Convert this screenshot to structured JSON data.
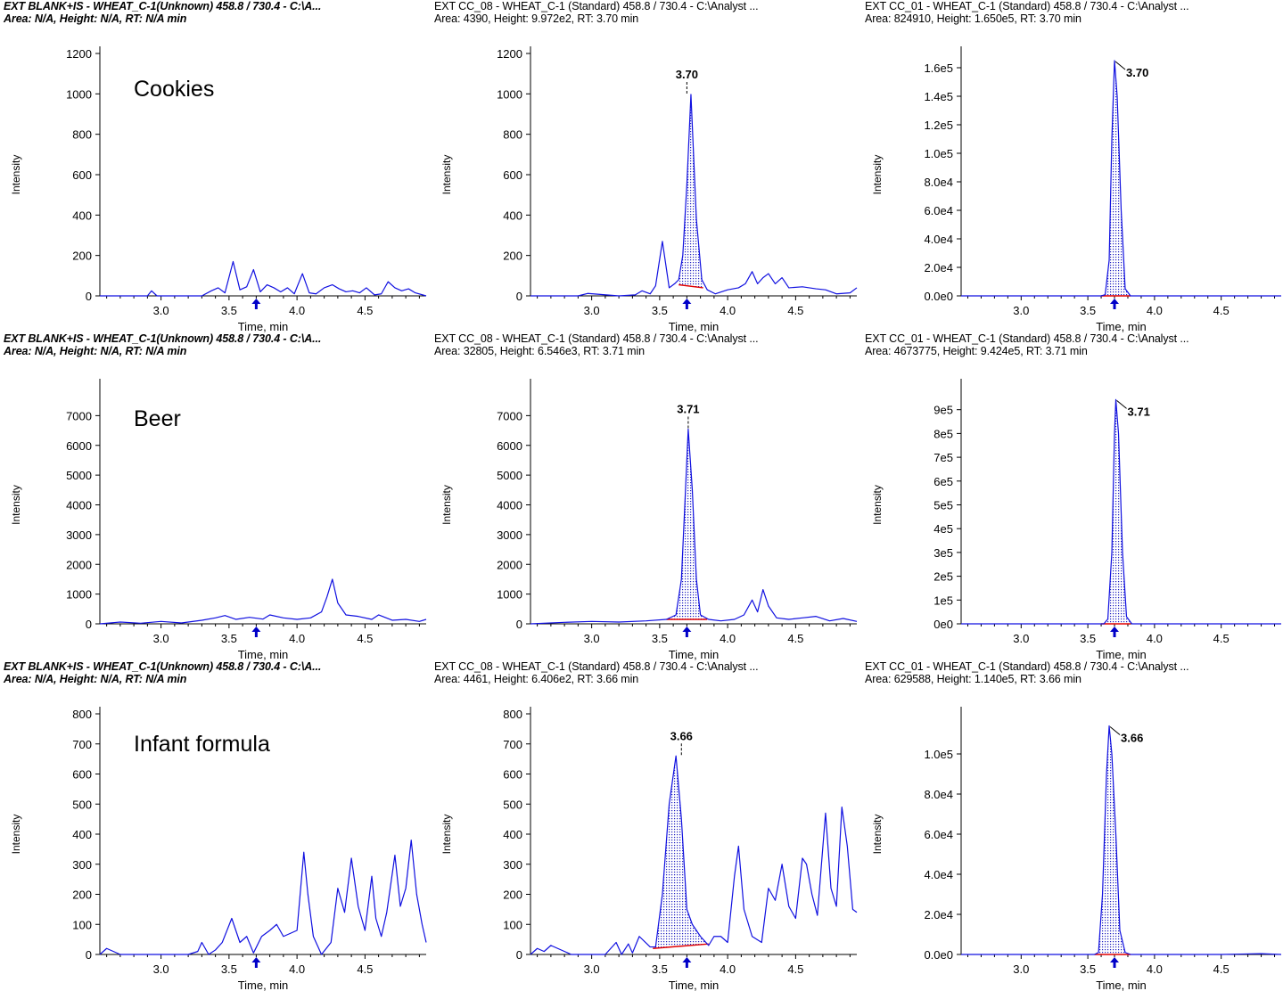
{
  "rows": [
    {
      "sample_label": "Cookies",
      "panels": [
        {
          "title": "EXT BLANK+IS - WHEAT_C-1(Unknown) 458.8 / 730.4 - C:\\A...",
          "info": "Area: N/A, Height: N/A, RT: N/A min",
          "style": "bold-italic"
        },
        {
          "title": "EXT CC_08 - WHEAT_C-1 (Standard) 458.8 / 730.4 - C:\\Analyst ...",
          "info": "Area: 4390, Height: 9.972e2, RT: 3.70 min",
          "style": "normal"
        },
        {
          "title": "EXT CC_01 - WHEAT_C-1 (Standard) 458.8 / 730.4 - C:\\Analyst ...",
          "info": "Area: 824910, Height: 1.650e5, RT: 3.70 min",
          "style": "normal"
        }
      ]
    },
    {
      "sample_label": "Beer",
      "panels": [
        {
          "title": "EXT BLANK+IS - WHEAT_C-1(Unknown) 458.8 / 730.4 - C:\\A...",
          "info": "Area: N/A, Height: N/A, RT: N/A min",
          "style": "bold-italic"
        },
        {
          "title": "EXT CC_08 - WHEAT_C-1 (Standard) 458.8 / 730.4 - C:\\Analyst ...",
          "info": "Area: 32805, Height: 6.546e3, RT: 3.71 min",
          "style": "normal"
        },
        {
          "title": "EXT CC_01 - WHEAT_C-1 (Standard) 458.8 / 730.4 - C:\\Analyst ...",
          "info": "Area: 4673775, Height: 9.424e5, RT: 3.71 min",
          "style": "normal"
        }
      ]
    },
    {
      "sample_label": "Infant formula",
      "panels": [
        {
          "title": "EXT BLANK+IS - WHEAT_C-1(Unknown) 458.8 / 730.4 - C:\\A...",
          "info": "Area: N/A, Height: N/A, RT: N/A min",
          "style": "bold-italic"
        },
        {
          "title": "EXT CC_08 - WHEAT_C-1 (Standard) 458.8 / 730.4 - C:\\Analyst ...",
          "info": "Area: 4461, Height: 6.406e2, RT: 3.66 min",
          "style": "normal"
        },
        {
          "title": "EXT CC_01 - WHEAT_C-1 (Standard) 458.8 / 730.4 - C:\\Analyst ...",
          "info": "Area: 629588, Height: 1.140e5, RT: 3.66 min",
          "style": "normal"
        }
      ]
    }
  ],
  "chart_data": [
    {
      "type": "line",
      "row": 0,
      "col": 0,
      "xlabel": "Time, min",
      "ylabel": "Intensity",
      "xlim": [
        2.55,
        4.95
      ],
      "ylim": [
        0,
        1200
      ],
      "xticks": [
        3.0,
        3.5,
        4.0,
        4.5
      ],
      "xtick_labels": [
        "3.0",
        "3.5",
        "4.0",
        "4.5"
      ],
      "yticks": [
        0,
        200,
        400,
        600,
        800,
        1000,
        1200
      ],
      "ytick_labels": [
        "0",
        "200",
        "400",
        "600",
        "800",
        "1000",
        "1200"
      ],
      "x": [
        2.55,
        2.9,
        2.93,
        2.97,
        3.3,
        3.37,
        3.42,
        3.47,
        3.53,
        3.58,
        3.63,
        3.68,
        3.73,
        3.78,
        3.83,
        3.88,
        3.93,
        3.98,
        4.04,
        4.09,
        4.14,
        4.2,
        4.26,
        4.31,
        4.36,
        4.41,
        4.46,
        4.51,
        4.57,
        4.62,
        4.67,
        4.72,
        4.77,
        4.82,
        4.87,
        4.95
      ],
      "y": [
        0,
        0,
        25,
        0,
        0,
        25,
        40,
        15,
        170,
        30,
        45,
        130,
        20,
        55,
        40,
        20,
        40,
        10,
        110,
        15,
        10,
        40,
        55,
        35,
        20,
        25,
        15,
        40,
        5,
        10,
        70,
        40,
        25,
        35,
        15,
        0
      ],
      "rt_marker": 3.7
    },
    {
      "type": "line",
      "row": 0,
      "col": 1,
      "xlabel": "Time, min",
      "ylabel": "Intensity",
      "xlim": [
        2.55,
        4.95
      ],
      "ylim": [
        0,
        1200
      ],
      "xticks": [
        3.0,
        3.5,
        4.0,
        4.5
      ],
      "xtick_labels": [
        "3.0",
        "3.5",
        "4.0",
        "4.5"
      ],
      "yticks": [
        0,
        200,
        400,
        600,
        800,
        1000,
        1200
      ],
      "ytick_labels": [
        "0",
        "200",
        "400",
        "600",
        "800",
        "1000",
        "1200"
      ],
      "x": [
        2.55,
        2.9,
        2.97,
        3.2,
        3.32,
        3.37,
        3.43,
        3.47,
        3.52,
        3.57,
        3.61,
        3.64,
        3.67,
        3.7,
        3.73,
        3.77,
        3.81,
        3.85,
        3.91,
        4.0,
        4.08,
        4.13,
        4.18,
        4.22,
        4.26,
        4.3,
        4.35,
        4.4,
        4.45,
        4.55,
        4.65,
        4.72,
        4.8,
        4.9,
        4.95
      ],
      "y": [
        0,
        0,
        12,
        0,
        5,
        25,
        10,
        50,
        270,
        40,
        60,
        80,
        200,
        550,
        997,
        380,
        80,
        30,
        10,
        30,
        40,
        60,
        120,
        60,
        90,
        110,
        60,
        90,
        40,
        45,
        35,
        30,
        10,
        15,
        40
      ],
      "peak_range": [
        3.64,
        3.82
      ],
      "baseline": [
        55,
        40
      ],
      "peak_label": "3.70",
      "peak_x": 3.7,
      "rt_marker": 3.7
    },
    {
      "type": "line",
      "row": 0,
      "col": 2,
      "xlabel": "Time, min",
      "ylabel": "Intensity",
      "xlim": [
        2.55,
        4.95
      ],
      "ylim": [
        0,
        170000
      ],
      "xticks": [
        3.0,
        3.5,
        4.0,
        4.5
      ],
      "xtick_labels": [
        "3.0",
        "3.5",
        "4.0",
        "4.5"
      ],
      "yticks": [
        0,
        20000,
        40000,
        60000,
        80000,
        100000,
        120000,
        140000,
        160000
      ],
      "ytick_labels": [
        "0.0e0",
        "2.0e4",
        "4.0e4",
        "6.0e4",
        "8.0e4",
        "1.0e5",
        "1.2e5",
        "1.4e5",
        "1.6e5"
      ],
      "x": [
        2.55,
        3.6,
        3.63,
        3.66,
        3.68,
        3.7,
        3.72,
        3.75,
        3.78,
        3.82,
        4.5,
        4.95
      ],
      "y": [
        0,
        0,
        800,
        25000,
        110000,
        165000,
        140000,
        60000,
        5000,
        0,
        0,
        0
      ],
      "peak_range": [
        3.6,
        3.82
      ],
      "baseline": [
        0,
        0
      ],
      "peak_label": "3.70",
      "peak_x": 3.7,
      "rt_marker": 3.7
    },
    {
      "type": "line",
      "row": 1,
      "col": 0,
      "xlabel": "Time, min",
      "ylabel": "Intensity",
      "xlim": [
        2.55,
        4.95
      ],
      "ylim": [
        0,
        8000
      ],
      "xticks": [
        3.0,
        3.5,
        4.0,
        4.5
      ],
      "xtick_labels": [
        "3.0",
        "3.5",
        "4.0",
        "4.5"
      ],
      "yticks": [
        0,
        1000,
        2000,
        3000,
        4000,
        5000,
        6000,
        7000
      ],
      "ytick_labels": [
        "0",
        "1000",
        "2000",
        "3000",
        "4000",
        "5000",
        "6000",
        "7000"
      ],
      "x": [
        2.55,
        2.7,
        2.85,
        3.0,
        3.15,
        3.3,
        3.4,
        3.47,
        3.55,
        3.65,
        3.75,
        3.8,
        3.9,
        4.0,
        4.1,
        4.18,
        4.22,
        4.26,
        4.3,
        4.36,
        4.45,
        4.55,
        4.6,
        4.7,
        4.8,
        4.9,
        4.95
      ],
      "y": [
        0,
        60,
        20,
        80,
        30,
        120,
        200,
        280,
        150,
        220,
        160,
        300,
        200,
        150,
        200,
        400,
        900,
        1500,
        700,
        300,
        250,
        150,
        300,
        120,
        150,
        80,
        150
      ],
      "rt_marker": 3.7
    },
    {
      "type": "line",
      "row": 1,
      "col": 1,
      "xlabel": "Time, min",
      "ylabel": "Intensity",
      "xlim": [
        2.55,
        4.95
      ],
      "ylim": [
        0,
        8000
      ],
      "xticks": [
        3.0,
        3.5,
        4.0,
        4.5
      ],
      "xtick_labels": [
        "3.0",
        "3.5",
        "4.0",
        "4.5"
      ],
      "yticks": [
        0,
        1000,
        2000,
        3000,
        4000,
        5000,
        6000,
        7000
      ],
      "ytick_labels": [
        "0",
        "1000",
        "2000",
        "3000",
        "4000",
        "5000",
        "6000",
        "7000"
      ],
      "x": [
        2.55,
        2.8,
        3.0,
        3.2,
        3.4,
        3.55,
        3.62,
        3.66,
        3.69,
        3.71,
        3.74,
        3.77,
        3.8,
        3.86,
        3.95,
        4.05,
        4.12,
        4.18,
        4.22,
        4.26,
        4.3,
        4.36,
        4.45,
        4.55,
        4.65,
        4.75,
        4.85,
        4.95
      ],
      "y": [
        0,
        50,
        80,
        60,
        100,
        150,
        300,
        1500,
        4500,
        6546,
        4500,
        1500,
        300,
        150,
        100,
        150,
        300,
        800,
        400,
        1150,
        600,
        200,
        150,
        200,
        250,
        100,
        180,
        80
      ],
      "peak_range": [
        3.55,
        3.85
      ],
      "baseline": [
        150,
        150
      ],
      "peak_label": "3.71",
      "peak_x": 3.71,
      "rt_marker": 3.7
    },
    {
      "type": "line",
      "row": 1,
      "col": 2,
      "xlabel": "Time, min",
      "ylabel": "Intensity",
      "xlim": [
        2.55,
        4.95
      ],
      "ylim": [
        0,
        1000000
      ],
      "xticks": [
        3.0,
        3.5,
        4.0,
        4.5
      ],
      "xtick_labels": [
        "3.0",
        "3.5",
        "4.0",
        "4.5"
      ],
      "yticks": [
        0,
        100000,
        200000,
        300000,
        400000,
        500000,
        600000,
        700000,
        800000,
        900000
      ],
      "ytick_labels": [
        "0e0",
        "1e5",
        "2e5",
        "3e5",
        "4e5",
        "5e5",
        "6e5",
        "7e5",
        "8e5",
        "9e5"
      ],
      "x": [
        2.55,
        3.62,
        3.65,
        3.68,
        3.7,
        3.71,
        3.73,
        3.76,
        3.79,
        3.83,
        4.5,
        4.95
      ],
      "y": [
        0,
        0,
        20000,
        300000,
        800000,
        942400,
        800000,
        300000,
        30000,
        0,
        0,
        0
      ],
      "peak_range": [
        3.6,
        3.82
      ],
      "baseline": [
        0,
        0
      ],
      "peak_label": "3.71",
      "peak_x": 3.71,
      "rt_marker": 3.7
    },
    {
      "type": "line",
      "row": 2,
      "col": 0,
      "xlabel": "Time, min",
      "ylabel": "Intensity",
      "xlim": [
        2.55,
        4.95
      ],
      "ylim": [
        0,
        800
      ],
      "xticks": [
        3.0,
        3.5,
        4.0,
        4.5
      ],
      "xtick_labels": [
        "3.0",
        "3.5",
        "4.0",
        "4.5"
      ],
      "yticks": [
        0,
        100,
        200,
        300,
        400,
        500,
        600,
        700,
        800
      ],
      "ytick_labels": [
        "0",
        "100",
        "200",
        "300",
        "400",
        "500",
        "600",
        "700",
        "800"
      ],
      "x": [
        2.55,
        2.6,
        2.65,
        2.7,
        3.2,
        3.27,
        3.3,
        3.35,
        3.4,
        3.45,
        3.52,
        3.58,
        3.63,
        3.68,
        3.74,
        3.8,
        3.85,
        3.9,
        4.0,
        4.05,
        4.08,
        4.12,
        4.18,
        4.25,
        4.3,
        4.35,
        4.4,
        4.45,
        4.5,
        4.55,
        4.58,
        4.62,
        4.66,
        4.72,
        4.76,
        4.8,
        4.84,
        4.88,
        4.92,
        4.95
      ],
      "y": [
        0,
        20,
        10,
        0,
        0,
        10,
        40,
        0,
        15,
        40,
        120,
        40,
        60,
        5,
        60,
        80,
        100,
        60,
        80,
        340,
        200,
        60,
        0,
        40,
        220,
        140,
        320,
        160,
        80,
        260,
        120,
        60,
        140,
        330,
        160,
        220,
        380,
        200,
        100,
        40
      ],
      "rt_marker": 3.7
    },
    {
      "type": "line",
      "row": 2,
      "col": 1,
      "xlabel": "Time, min",
      "ylabel": "Intensity",
      "xlim": [
        2.55,
        4.95
      ],
      "ylim": [
        0,
        800
      ],
      "xticks": [
        3.0,
        3.5,
        4.0,
        4.5
      ],
      "xtick_labels": [
        "3.0",
        "3.5",
        "4.0",
        "4.5"
      ],
      "yticks": [
        0,
        100,
        200,
        300,
        400,
        500,
        600,
        700,
        800
      ],
      "ytick_labels": [
        "0",
        "100",
        "200",
        "300",
        "400",
        "500",
        "600",
        "700",
        "800"
      ],
      "x": [
        2.55,
        2.6,
        2.65,
        2.7,
        2.85,
        3.1,
        3.18,
        3.22,
        3.27,
        3.3,
        3.35,
        3.43,
        3.47,
        3.52,
        3.57,
        3.62,
        3.66,
        3.7,
        3.74,
        3.8,
        3.86,
        3.9,
        3.95,
        4.0,
        4.05,
        4.08,
        4.12,
        4.18,
        4.25,
        4.3,
        4.35,
        4.4,
        4.45,
        4.5,
        4.55,
        4.58,
        4.62,
        4.66,
        4.72,
        4.76,
        4.8,
        4.84,
        4.88,
        4.92,
        4.95
      ],
      "y": [
        0,
        20,
        10,
        30,
        0,
        0,
        40,
        0,
        35,
        5,
        60,
        25,
        25,
        200,
        500,
        660,
        450,
        150,
        100,
        60,
        30,
        60,
        60,
        40,
        260,
        360,
        150,
        60,
        40,
        220,
        180,
        300,
        160,
        120,
        320,
        300,
        200,
        130,
        470,
        220,
        160,
        490,
        360,
        150,
        140
      ],
      "peak_range": [
        3.45,
        3.86
      ],
      "baseline": [
        20,
        35
      ],
      "peak_label": "3.66",
      "peak_x": 3.66,
      "rt_marker": 3.7
    },
    {
      "type": "line",
      "row": 2,
      "col": 2,
      "xlabel": "Time, min",
      "ylabel": "Intensity",
      "xlim": [
        2.55,
        4.95
      ],
      "ylim": [
        0,
        120000
      ],
      "xticks": [
        3.0,
        3.5,
        4.0,
        4.5
      ],
      "xtick_labels": [
        "3.0",
        "3.5",
        "4.0",
        "4.5"
      ],
      "yticks": [
        0,
        20000,
        40000,
        60000,
        80000,
        100000
      ],
      "ytick_labels": [
        "0.0e0",
        "2.0e4",
        "4.0e4",
        "6.0e4",
        "8.0e4",
        "1.0e5"
      ],
      "x": [
        2.55,
        3.55,
        3.58,
        3.61,
        3.64,
        3.66,
        3.68,
        3.71,
        3.74,
        3.78,
        3.82,
        4.5,
        4.8,
        4.95
      ],
      "y": [
        0,
        0,
        1000,
        30000,
        90000,
        114000,
        100000,
        60000,
        12000,
        1000,
        0,
        0,
        400,
        0
      ],
      "peak_range": [
        3.55,
        3.82
      ],
      "baseline": [
        0,
        0
      ],
      "peak_label": "3.66",
      "peak_x": 3.66,
      "rt_marker": 3.7
    }
  ]
}
